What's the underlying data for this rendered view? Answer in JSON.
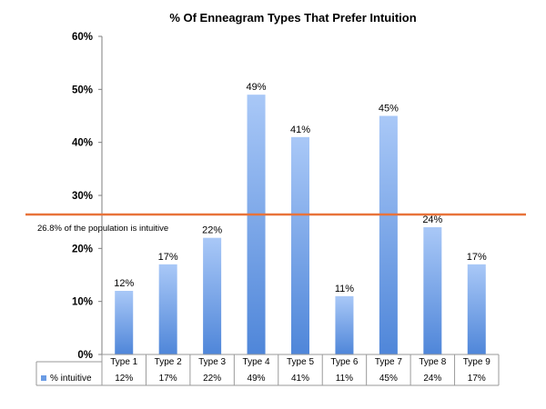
{
  "chart_data": {
    "type": "bar",
    "title": "% Of Enneagram Types That Prefer Intuition",
    "categories": [
      "Type  1",
      "Type 2",
      "Type 3",
      "Type 4",
      "Type 5",
      "Type 6",
      "Type 7",
      "Type 8",
      "Type 9"
    ],
    "series": [
      {
        "name": "% intuitive",
        "values": [
          12,
          17,
          22,
          49,
          41,
          11,
          45,
          24,
          17
        ],
        "labels": [
          "12%",
          "17%",
          "22%",
          "49%",
          "41%",
          "11%",
          "45%",
          "24%",
          "17%"
        ]
      }
    ],
    "ylim": [
      0,
      60
    ],
    "yticks": [
      "0%",
      "10%",
      "20%",
      "30%",
      "40%",
      "50%",
      "60%"
    ],
    "reference_line": {
      "value": 26.8,
      "label": "26.8% of the population is intuitive",
      "color": "#e8733a"
    },
    "grid": false,
    "legend": "data-table",
    "colors": {
      "bar_top": "#a9c8f7",
      "bar_bottom": "#4f86d9",
      "legend_key": "#6a9be4"
    }
  }
}
